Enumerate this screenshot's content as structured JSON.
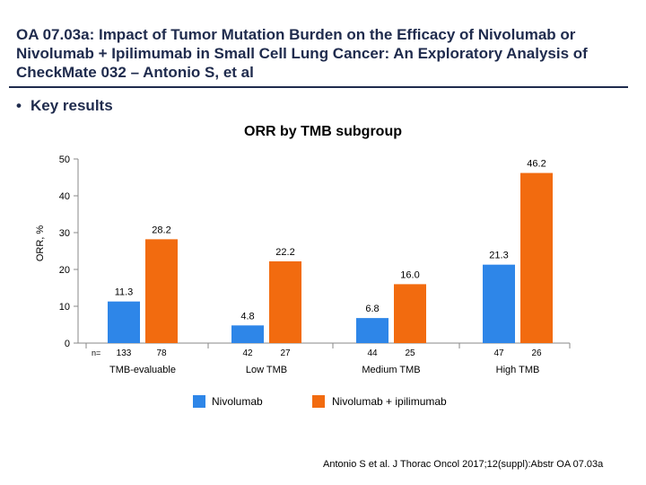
{
  "slide": {
    "title": "OA 07.03a: Impact of Tumor Mutation Burden on the Efficacy of Nivolumab or Nivolumab + Ipilimumab in Small Cell Lung Cancer: An Exploratory Analysis of CheckMate 032 – Antonio S, et al",
    "bullet": "Key results",
    "source": "Antonio S et al. J Thorac Oncol 2017;12(suppl):Abstr OA 07.03a"
  },
  "colors": {
    "title": "#1f2b4d",
    "nivolumab": "#2e86e8",
    "combo": "#f26b0f"
  },
  "chart_data": {
    "type": "bar",
    "title": "ORR by TMB subgroup",
    "ylabel": "ORR, %",
    "xlabel": "",
    "ylim": [
      0,
      50
    ],
    "yticks": [
      0,
      10,
      20,
      30,
      40,
      50
    ],
    "n_prefix": "n=",
    "categories": [
      "TMB-evaluable",
      "Low TMB",
      "Medium TMB",
      "High TMB"
    ],
    "series": [
      {
        "name": "Nivolumab",
        "values": [
          11.3,
          4.8,
          6.8,
          21.3
        ],
        "labels": [
          "11.3",
          "4.8",
          "6.8",
          "21.3"
        ],
        "n": [
          "133",
          "42",
          "44",
          "47"
        ]
      },
      {
        "name": "Nivolumab + ipilimumab",
        "values": [
          28.2,
          22.2,
          16.0,
          46.2
        ],
        "labels": [
          "28.2",
          "22.2",
          "16.0",
          "46.2"
        ],
        "n": [
          "78",
          "27",
          "25",
          "26"
        ]
      }
    ],
    "legend_position": "bottom"
  }
}
